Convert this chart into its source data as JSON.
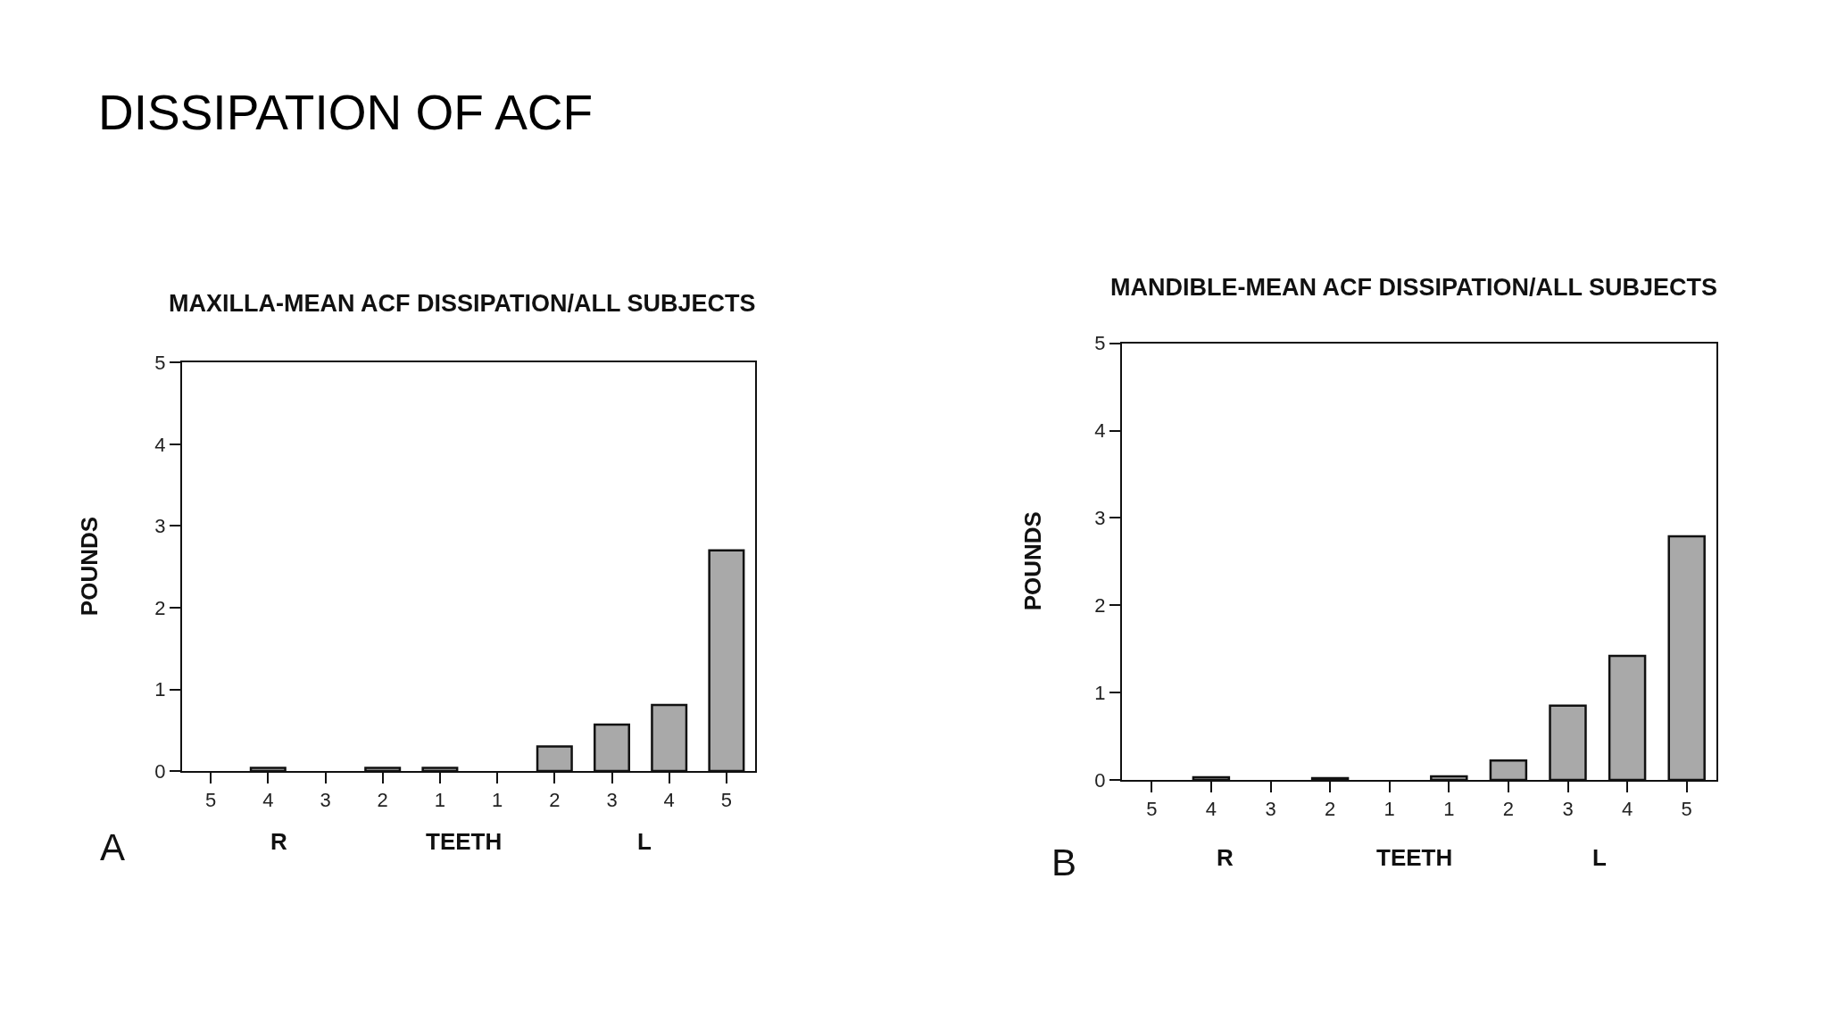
{
  "chart_data": [
    {
      "type": "other",
      "title": "DISSIPATION OF ACF"
    },
    {
      "type": "bar",
      "title": "MAXILLA-MEAN ACF DISSIPATION/ALL SUBJECTS",
      "xlabel": "TEETH",
      "ylabel": "POUNDS",
      "categories": [
        "5",
        "4",
        "3",
        "2",
        "1",
        "1",
        "2",
        "3",
        "4",
        "5"
      ],
      "values": [
        null,
        0.04,
        null,
        0.04,
        0.04,
        null,
        0.3,
        0.57,
        0.81,
        2.7
      ],
      "color": "#a9a9a9",
      "ylim": [
        0,
        5
      ],
      "yticks": [
        0,
        1,
        2,
        3,
        4,
        5
      ],
      "annotations": [
        "R",
        "L",
        "A"
      ]
    },
    {
      "type": "bar",
      "title": "MANDIBLE-MEAN ACF DISSIPATION/ALL SUBJECTS",
      "xlabel": "TEETH",
      "ylabel": "POUNDS",
      "categories": [
        "5",
        "4",
        "3",
        "2",
        "1",
        "1",
        "2",
        "3",
        "4",
        "5"
      ],
      "values": [
        null,
        0.03,
        null,
        0.02,
        null,
        0.04,
        0.22,
        0.85,
        1.42,
        2.79
      ],
      "color": "#a9a9a9",
      "ylim": [
        0,
        5
      ],
      "yticks": [
        0,
        1,
        2,
        3,
        4,
        5
      ],
      "annotations": [
        "R",
        "L",
        "B"
      ]
    }
  ]
}
